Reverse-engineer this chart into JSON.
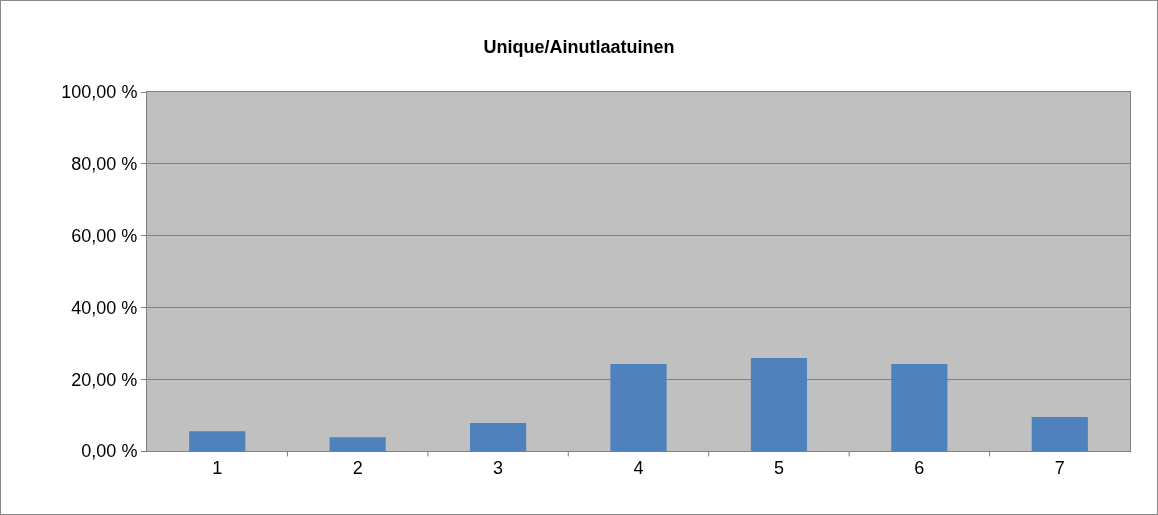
{
  "chart_data": {
    "type": "bar",
    "title": "Unique/Ainutlaatuinen",
    "categories": [
      "1",
      "2",
      "3",
      "4",
      "5",
      "6",
      "7"
    ],
    "values": [
      5.5,
      3.8,
      7.8,
      24.2,
      25.9,
      24.2,
      9.5
    ],
    "color": "#4f81bd",
    "ylim": [
      0,
      100
    ],
    "yticks": [
      {
        "value": 0,
        "label": "0,00 %"
      },
      {
        "value": 20,
        "label": "20,00 %"
      },
      {
        "value": 40,
        "label": "40,00 %"
      },
      {
        "value": 60,
        "label": "60,00 %"
      },
      {
        "value": 80,
        "label": "80,00 %"
      },
      {
        "value": 100,
        "label": "100,00 %"
      }
    ],
    "grid": "y"
  }
}
